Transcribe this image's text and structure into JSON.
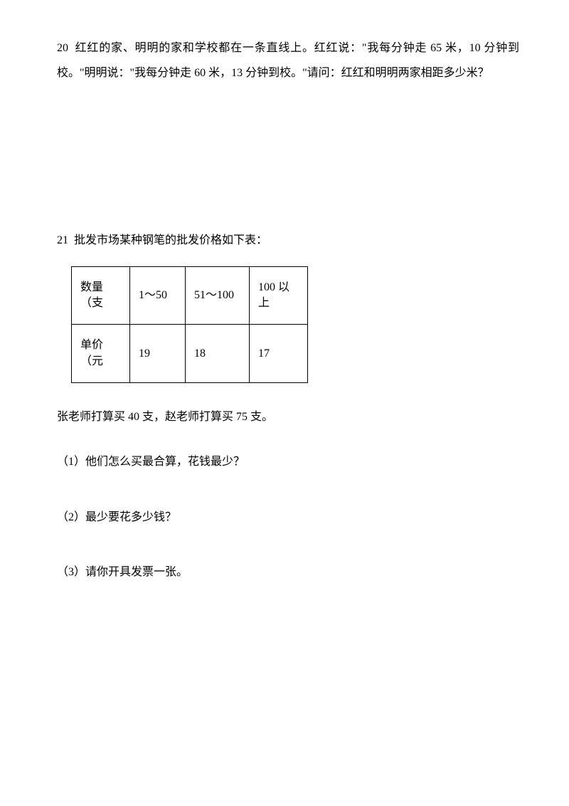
{
  "question20": {
    "number": "20",
    "text": "红红的家、明明的家和学校都在一条直线上。红红说：\"我每分钟走 65 米，10 分钟到校。\"明明说：\"我每分钟走 60 米，13 分钟到校。\"请问：红红和明明两家相距多少米？"
  },
  "question21": {
    "number": "21",
    "intro": "批发市场某种钢笔的批发价格如下表：",
    "table": {
      "rows": [
        {
          "label": "数量（支",
          "col1": "1～50",
          "col2": "51～100",
          "col3": "100 以上"
        },
        {
          "label": "单价（元",
          "col1": "19",
          "col2": "18",
          "col3": "17"
        }
      ]
    },
    "postTable": "张老师打算买 40 支，赵老师打算买 75 支。",
    "subQuestions": [
      "（1）他们怎么买最合算，花钱最少？",
      "（2）最少要花多少钱？",
      "（3）请你开具发票一张。"
    ]
  }
}
